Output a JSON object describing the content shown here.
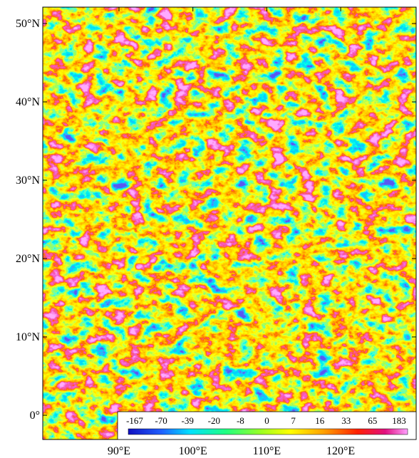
{
  "map": {
    "lat_ticks": [
      "50°N",
      "40°N",
      "30°N",
      "20°N",
      "10°N",
      "0°"
    ],
    "lon_ticks": [
      "90°E",
      "100°E",
      "110°E",
      "120°E"
    ],
    "colorbar": {
      "labels": [
        "-167",
        "-70",
        "-39",
        "-20",
        "-8",
        "0",
        "7",
        "16",
        "33",
        "65",
        "183"
      ]
    }
  }
}
